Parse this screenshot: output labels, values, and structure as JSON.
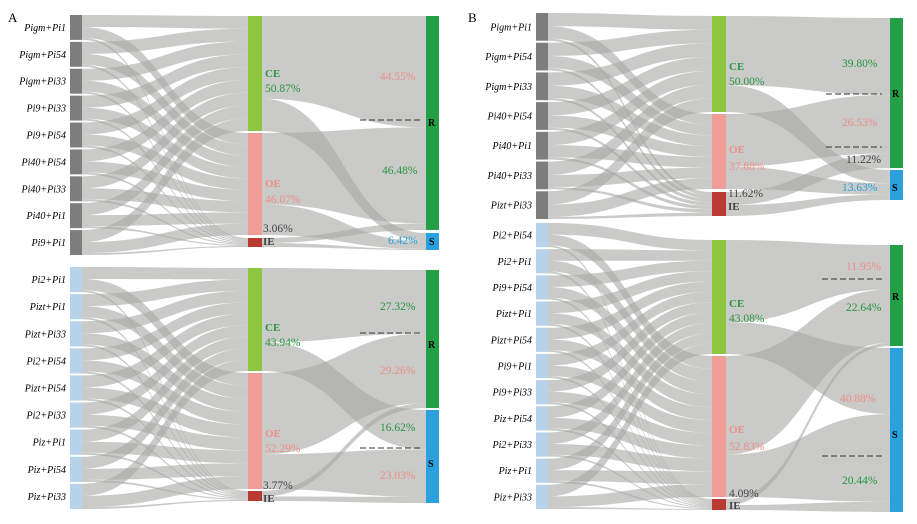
{
  "colors": {
    "flow": "#a7a6a5",
    "source_dark": "#7d7d7d",
    "source_light": "#b7d3ec",
    "CE": "#8ec641",
    "OE": "#f19d97",
    "IE": "#b83a30",
    "R": "#23a046",
    "S": "#2aa0dc",
    "text_CE": "#27973f",
    "text_OE": "#ee8d86",
    "text_IE": "#444444",
    "text_R": "#27973f",
    "text_S": "#2aa0dc"
  },
  "panels": [
    {
      "letter": "A",
      "groups": [
        {
          "source_style": "dark",
          "sources": [
            "Pigm+Pi1",
            "Pigm+Pi54",
            "Pigm+Pi33",
            "Pi9+Pi33",
            "Pi9+Pi54",
            "Pi40+Pi54",
            "Pi40+Pi33",
            "Pi40+Pi1",
            "Pi9+Pi1"
          ],
          "categories": [
            {
              "key": "CE",
              "name": "CE",
              "value": "50.87%"
            },
            {
              "key": "OE",
              "name": "OE",
              "value": "46.07%"
            },
            {
              "key": "IE",
              "name": "IE",
              "value": "3.06%"
            }
          ],
          "outcomes": [
            {
              "key": "R",
              "letter": "R"
            },
            {
              "key": "S",
              "letter": "S"
            }
          ],
          "flow_pcts": [
            {
              "value": "44.55%",
              "color": "OE"
            },
            {
              "value": "46.48%",
              "color": "R"
            },
            {
              "value": "6.42%",
              "color": "S"
            }
          ]
        },
        {
          "source_style": "light",
          "sources": [
            "Pi2+Pi1",
            "Pizt+Pi1",
            "Pizt+Pi33",
            "Pi2+Pi54",
            "Pizt+Pi54",
            "Pi2+Pi33",
            "Piz+Pi1",
            "Piz+Pi54",
            "Piz+Pi33"
          ],
          "categories": [
            {
              "key": "CE",
              "name": "CE",
              "value": "43.94%"
            },
            {
              "key": "OE",
              "name": "OE",
              "value": "52.29%"
            },
            {
              "key": "IE",
              "name": "IE",
              "value": "3.77%"
            }
          ],
          "outcomes": [
            {
              "key": "R",
              "letter": "R"
            },
            {
              "key": "S",
              "letter": "S"
            }
          ],
          "flow_pcts": [
            {
              "value": "27.32%",
              "color": "R"
            },
            {
              "value": "29.26%",
              "color": "OE"
            },
            {
              "value": "16.62%",
              "color": "R"
            },
            {
              "value": "23.03%",
              "color": "OE"
            }
          ]
        }
      ]
    },
    {
      "letter": "B",
      "groups": [
        {
          "source_style": "dark",
          "sources": [
            "Pigm+Pi1",
            "Pigm+Pi54",
            "Pigm+Pi33",
            "Pi40+Pi54",
            "Pi40+Pi1",
            "Pi40+Pi33",
            "Pizt+Pi33"
          ],
          "categories": [
            {
              "key": "CE",
              "name": "CE",
              "value": "50.00%"
            },
            {
              "key": "OE",
              "name": "OE",
              "value": "37.88%"
            },
            {
              "key": "IE",
              "name": "IE",
              "value": "11.62%"
            }
          ],
          "outcomes": [
            {
              "key": "R",
              "letter": "R"
            },
            {
              "key": "S",
              "letter": "S"
            }
          ],
          "flow_pcts": [
            {
              "value": "39.80%",
              "color": "R"
            },
            {
              "value": "26.53%",
              "color": "OE"
            },
            {
              "value": "11.22%",
              "color": "IE"
            },
            {
              "value": "13.63%",
              "color": "S"
            }
          ]
        },
        {
          "source_style": "light",
          "sources": [
            "Pi2+Pi54",
            "Pi2+Pi1",
            "Pi9+Pi54",
            "Pizt+Pi1",
            "Pizt+Pi54",
            "Pi9+Pi1",
            "Pi9+Pi33",
            "Piz+Pi54",
            "Pi2+Pi33",
            "Piz+Pi1",
            "Piz+Pi33"
          ],
          "categories": [
            {
              "key": "CE",
              "name": "CE",
              "value": "43.08%"
            },
            {
              "key": "OE",
              "name": "OE",
              "value": "52.83%"
            },
            {
              "key": "IE",
              "name": "IE",
              "value": "4.09%"
            }
          ],
          "outcomes": [
            {
              "key": "R",
              "letter": "R"
            },
            {
              "key": "S",
              "letter": "S"
            }
          ],
          "flow_pcts": [
            {
              "value": "11.95%",
              "color": "OE"
            },
            {
              "value": "22.64%",
              "color": "R"
            },
            {
              "value": "40.88%",
              "color": "OE"
            },
            {
              "value": "20.44%",
              "color": "R"
            }
          ]
        }
      ]
    }
  ]
}
